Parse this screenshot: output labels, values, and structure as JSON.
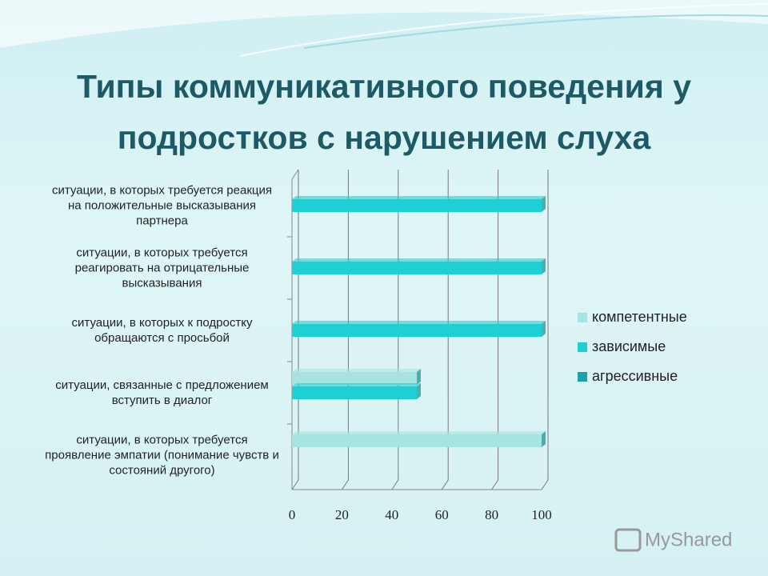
{
  "chart_data": {
    "type": "bar",
    "orientation": "horizontal",
    "title": "Типы коммуникативного поведения у подростков с нарушением слуха",
    "categories": [
      "ситуации, в которых требуется реакция на положительные высказывания партнера",
      "ситуации, в которых требуется реагировать на отрицательные высказывания",
      "ситуации, в которых к подростку обращаются с просьбой",
      "ситуации, связанные с предложением вступить в диалог",
      "ситуации, в которых требуется проявление эмпатии (понимание чувств и состояний другого)"
    ],
    "series": [
      {
        "name": "компетентные",
        "color": "#a6e4e4",
        "values": [
          0,
          0,
          0,
          50,
          100
        ]
      },
      {
        "name": "зависимые",
        "color": "#1ed0d4",
        "values": [
          100,
          100,
          100,
          50,
          0
        ]
      },
      {
        "name": "агрессивные",
        "color": "#18a2aa",
        "values": [
          0,
          0,
          0,
          0,
          0
        ]
      }
    ],
    "xlim": [
      0,
      100
    ],
    "xticks": [
      0,
      20,
      40,
      60,
      80,
      100
    ],
    "grid": true,
    "legend": "right",
    "watermark": "MyShared"
  }
}
